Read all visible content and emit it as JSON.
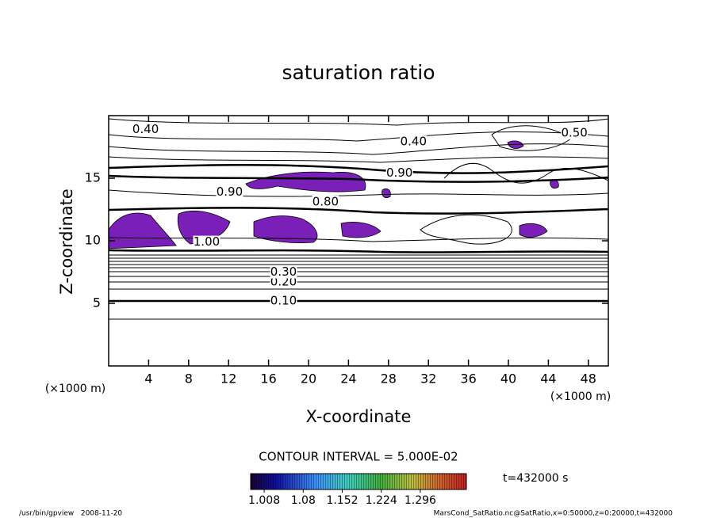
{
  "chart_data": {
    "type": "contour",
    "title": "saturation ratio",
    "x_label": "X-coordinate",
    "y_label": "Z-coordinate",
    "x_unit": "(×1000 m)",
    "y_unit": "(×1000 m)",
    "xlim": [
      0,
      50
    ],
    "ylim": [
      0,
      20
    ],
    "xticks": [
      4,
      8,
      12,
      16,
      20,
      24,
      28,
      32,
      36,
      40,
      44,
      48
    ],
    "yticks": [
      5,
      10,
      15
    ],
    "contour_interval": "CONTOUR INTERVAL = 5.000E-02",
    "contour_labels": [
      {
        "label": "0.10",
        "x": 17.5,
        "z": 5.2
      },
      {
        "label": "0.20",
        "x": 17.5,
        "z": 6.7
      },
      {
        "label": "0.30",
        "x": 17.5,
        "z": 7.5
      },
      {
        "label": "0.40",
        "x": 3.7,
        "z": 18.9
      },
      {
        "label": "0.40",
        "x": 30.5,
        "z": 17.9
      },
      {
        "label": "0.50",
        "x": 46.6,
        "z": 18.6
      },
      {
        "label": "0.90",
        "x": 29.1,
        "z": 15.4
      },
      {
        "label": "0.90",
        "x": 12.1,
        "z": 13.9
      },
      {
        "label": "0.80",
        "x": 21.7,
        "z": 13.1
      },
      {
        "label": "1.00",
        "x": 9.8,
        "z": 9.9
      }
    ],
    "colorbar": {
      "clim": [
        0.983,
        1.381
      ],
      "ticks": [
        1.008,
        1.08,
        1.152,
        1.224,
        1.296
      ]
    },
    "time_label": "t=432000 s",
    "footer_left": "/usr/bin/gpview   2008-11-20",
    "footer_right": "MarsCond_SatRatio.nc@SatRatio,x=0:50000,z=0:20000,t=432000"
  }
}
